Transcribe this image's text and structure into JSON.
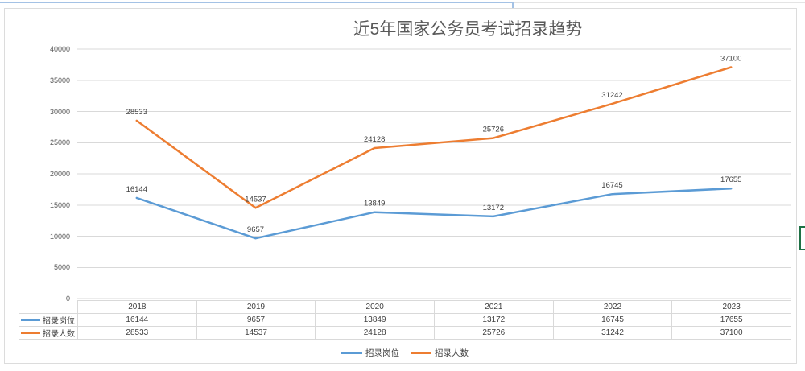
{
  "chart_data": {
    "type": "line",
    "title": "近5年国家公务员考试招录趋势",
    "categories": [
      "2018",
      "2019",
      "2020",
      "2021",
      "2022",
      "2023"
    ],
    "series": [
      {
        "name": "招录岗位",
        "color": "#5B9BD5",
        "values": [
          16144,
          9657,
          13849,
          13172,
          16745,
          17655
        ]
      },
      {
        "name": "招录人数",
        "color": "#ED7D31",
        "values": [
          28533,
          14537,
          24128,
          25726,
          31242,
          37100
        ]
      }
    ],
    "y_axis": {
      "min": 0,
      "max": 40000,
      "step": 5000,
      "ticks": [
        "40000",
        "35000",
        "30000",
        "25000",
        "20000",
        "15000",
        "10000",
        "5000",
        "0"
      ]
    },
    "legend": {
      "position": "bottom",
      "items": [
        "招录岗位",
        "招录人数"
      ]
    },
    "grid": true,
    "data_labels": true,
    "data_table": true
  },
  "colors": {
    "grid": "#D9D9D9",
    "chart_border": "#DCDCDC",
    "axis_text": "#595959",
    "title_text": "#595959",
    "value_text": "#404040",
    "selection_green": "#1E7145",
    "top_line_blue": "#A4C2E5"
  }
}
